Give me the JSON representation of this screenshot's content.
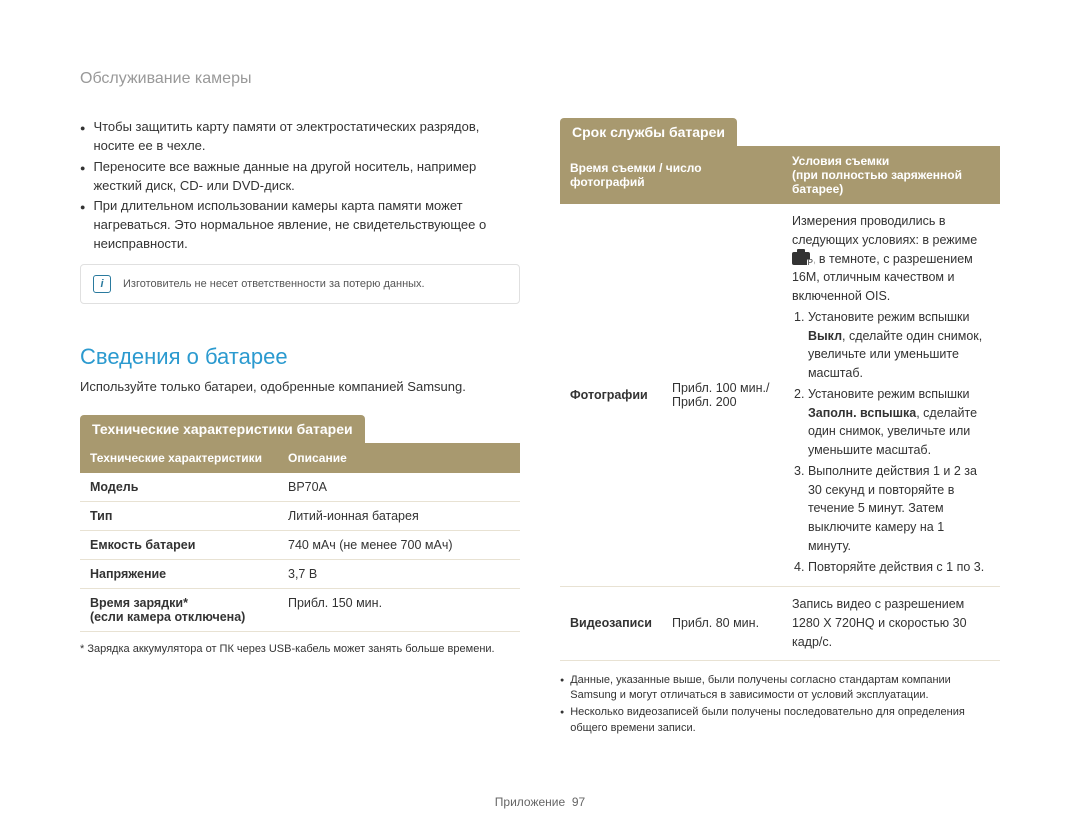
{
  "page_header": "Обслуживание камеры",
  "bullets": [
    "Чтобы защитить карту памяти от электростатических разрядов, носите ее в чехле.",
    "Переносите все важные данные на другой носитель, например жесткий диск, CD- или DVD-диск.",
    "При длительном использовании камеры карта памяти может нагреваться. Это нормальное явление, не свидетельствующее о неисправности."
  ],
  "note_text": "Изготовитель не несет ответственности за потерю данных.",
  "battery_section_title": "Сведения о батарее",
  "battery_section_desc": "Используйте только батареи, одобренные компанией Samsung.",
  "spec_heading": "Технические характеристики батареи",
  "spec_table": {
    "head": [
      "Технические характеристики",
      "Описание"
    ],
    "rows": [
      [
        "Модель",
        "BP70A"
      ],
      [
        "Тип",
        "Литий-ионная батарея"
      ],
      [
        "Емкость батареи",
        "740 мАч (не менее 700 мАч)"
      ],
      [
        "Напряжение",
        "3,7 В"
      ],
      [
        "Время зарядки*\n(если камера отключена)",
        "Прибл. 150 мин."
      ]
    ]
  },
  "spec_footnote": "* Зарядка аккумулятора от ПК через USB-кабель может занять больше времени.",
  "life_heading": "Срок службы батареи",
  "life_table": {
    "head": [
      "Время съемки / число фотографий",
      "Условия съемки\n(при полностью заряженной батарее)"
    ],
    "row1_label": "Фотографии",
    "row1_value": "Прибл. 100 мин./ Прибл. 200",
    "row1_cond_intro_1": "Измерения проводились в следующих условиях: в режиме ",
    "row1_cond_intro_2": ", в темноте, с разрешением 16M, отличным качеством и включенной OIS.",
    "row1_steps": [
      {
        "pre": "Установите режим вспышки ",
        "bold": "Выкл",
        "post": ", сделайте один снимок, увеличьте или уменьшите масштаб."
      },
      {
        "pre": "Установите режим вспышки ",
        "bold": "Заполн. вспышка",
        "post": ", сделайте один снимок, увеличьте или уменьшите масштаб."
      },
      {
        "text": "Выполните действия 1 и 2 за 30 секунд и повторяйте в течение 5 минут. Затем выключите камеру на 1 минуту."
      },
      {
        "text": "Повторяйте действия с 1 по 3."
      }
    ],
    "row2_label": "Видеозаписи",
    "row2_value": "Прибл. 80 мин.",
    "row2_cond": "Запись видео с разрешением 1280 X 720HQ и скоростью 30 кадр/с."
  },
  "life_footnotes": [
    "Данные, указанные выше, были получены согласно стандартам компании Samsung и могут отличаться в зависимости от условий эксплуатации.",
    "Несколько видеозаписей были получены последовательно для определения общего времени записи."
  ],
  "page_label": "Приложение",
  "page_number": "97"
}
